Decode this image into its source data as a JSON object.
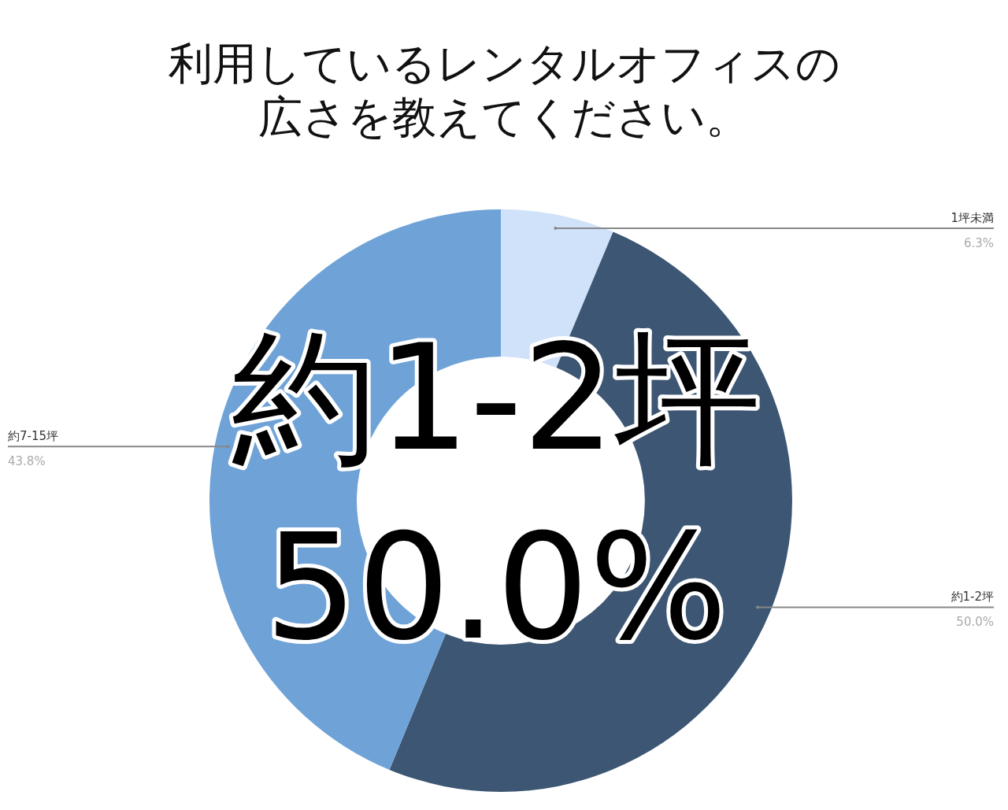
{
  "chart_data": {
    "type": "donut",
    "title": "利用しているレンタルオフィスの広さを教えてください。",
    "categories": [
      "1坪未満",
      "約1-2坪",
      "約7-15坪"
    ],
    "values": [
      6.3,
      50.0,
      43.8
    ],
    "value_labels": [
      "6.3%",
      "50.0%",
      "43.8%"
    ],
    "colors": [
      "#cfe2f9",
      "#3c5673",
      "#6fa3d8"
    ],
    "annotations": [
      "約1-2坪",
      "50.0%"
    ]
  }
}
